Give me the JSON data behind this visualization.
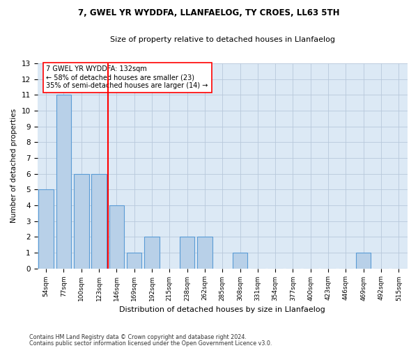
{
  "title1": "7, GWEL YR WYDDFA, LLANFAELOG, TY CROES, LL63 5TH",
  "title2": "Size of property relative to detached houses in Llanfaelog",
  "xlabel": "Distribution of detached houses by size in Llanfaelog",
  "ylabel": "Number of detached properties",
  "categories": [
    "54sqm",
    "77sqm",
    "100sqm",
    "123sqm",
    "146sqm",
    "169sqm",
    "192sqm",
    "215sqm",
    "238sqm",
    "262sqm",
    "285sqm",
    "308sqm",
    "331sqm",
    "354sqm",
    "377sqm",
    "400sqm",
    "423sqm",
    "446sqm",
    "469sqm",
    "492sqm",
    "515sqm"
  ],
  "values": [
    5,
    11,
    6,
    6,
    4,
    1,
    2,
    0,
    2,
    2,
    0,
    1,
    0,
    0,
    0,
    0,
    0,
    0,
    1,
    0,
    0
  ],
  "bar_color": "#b8d0e8",
  "bar_edge_color": "#5a9bd5",
  "red_line_x": 3.5,
  "annotation_title": "7 GWEL YR WYDDFA: 132sqm",
  "annotation_line1": "← 58% of detached houses are smaller (23)",
  "annotation_line2": "35% of semi-detached houses are larger (14) →",
  "ylim": [
    0,
    13
  ],
  "yticks": [
    0,
    1,
    2,
    3,
    4,
    5,
    6,
    7,
    8,
    9,
    10,
    11,
    12,
    13
  ],
  "footer1": "Contains HM Land Registry data © Crown copyright and database right 2024.",
  "footer2": "Contains public sector information licensed under the Open Government Licence v3.0.",
  "background_color": "#dce9f5",
  "plot_background": "#ffffff",
  "grid_color": "#b8c8db"
}
